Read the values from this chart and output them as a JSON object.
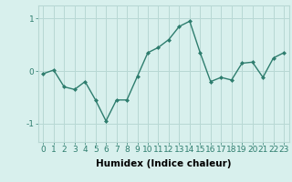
{
  "x": [
    0,
    1,
    2,
    3,
    4,
    5,
    6,
    7,
    8,
    9,
    10,
    11,
    12,
    13,
    14,
    15,
    16,
    17,
    18,
    19,
    20,
    21,
    22,
    23
  ],
  "y": [
    -0.05,
    0.02,
    -0.3,
    -0.35,
    -0.2,
    -0.55,
    -0.95,
    -0.55,
    -0.55,
    -0.1,
    0.35,
    0.45,
    0.6,
    0.85,
    0.95,
    0.35,
    -0.2,
    -0.12,
    -0.17,
    0.15,
    0.17,
    -0.12,
    0.25,
    0.35
  ],
  "line_color": "#2e7d6e",
  "marker": "D",
  "marker_size": 2,
  "linewidth": 1.0,
  "xlabel": "Humidex (Indice chaleur)",
  "xlim": [
    -0.5,
    23.5
  ],
  "ylim": [
    -1.35,
    1.25
  ],
  "yticks": [
    -1,
    0,
    1
  ],
  "xticks": [
    0,
    1,
    2,
    3,
    4,
    5,
    6,
    7,
    8,
    9,
    10,
    11,
    12,
    13,
    14,
    15,
    16,
    17,
    18,
    19,
    20,
    21,
    22,
    23
  ],
  "bg_color": "#d8f0ed",
  "grid_color": "#b8d8d4",
  "tick_fontsize": 6.5,
  "xlabel_fontsize": 7.5
}
